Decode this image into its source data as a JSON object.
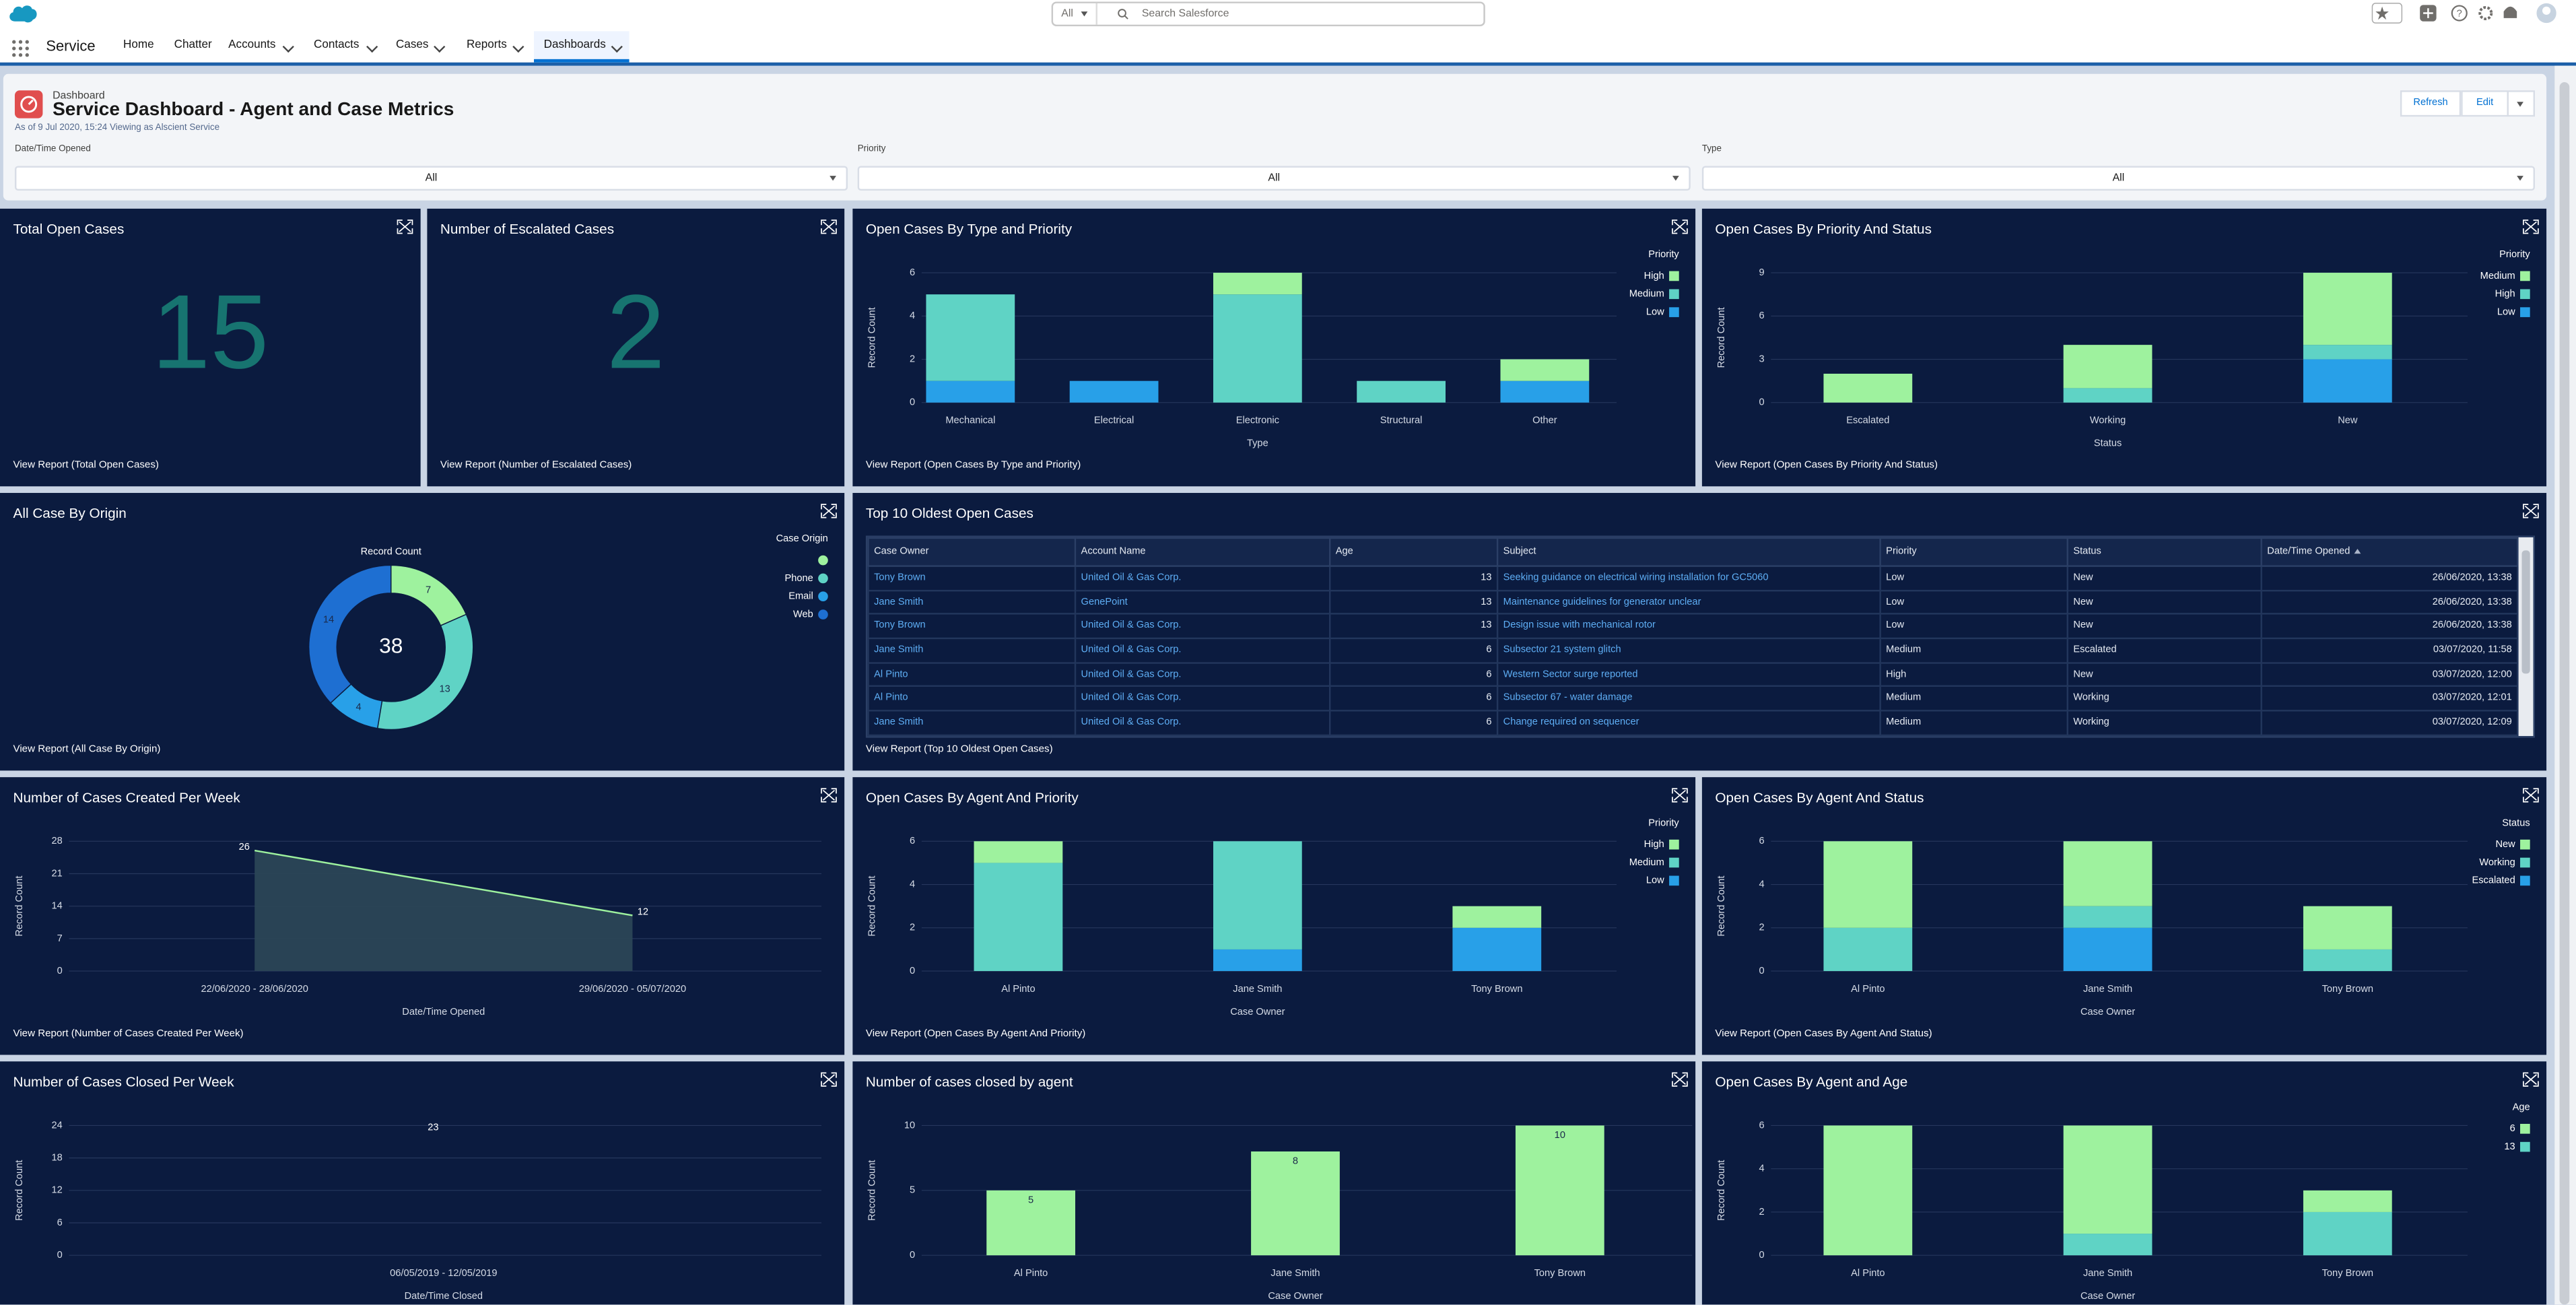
{
  "nav": {
    "app": "Service",
    "tabs": [
      "Home",
      "Chatter",
      "Accounts",
      "Contacts",
      "Cases",
      "Reports",
      "Dashboards"
    ],
    "search": {
      "scope": "All",
      "placeholder": "Search Salesforce"
    }
  },
  "header": {
    "label": "Dashboard",
    "title": "Service Dashboard - Agent and Case Metrics",
    "subtitle": "As of 9 Jul 2020, 15:24 Viewing as Alscient Service",
    "buttons": [
      "Refresh",
      "Edit"
    ]
  },
  "filters": [
    {
      "label": "Date/Time Opened",
      "value": "All"
    },
    {
      "label": "Priority",
      "value": "All"
    },
    {
      "label": "Type",
      "value": "All"
    }
  ],
  "widgets": [
    {
      "type": "metric",
      "title": "Total Open Cases",
      "value": 15,
      "link": "View Report (Total Open Cases)"
    },
    {
      "type": "metric",
      "title": "Number of Escalated Cases",
      "value": 2,
      "link": "View Report (Number of Escalated Cases)"
    },
    {
      "type": "bar",
      "title": "Open Cases By Type and Priority",
      "y_label": "Record Count",
      "x_label": "Type",
      "legend_title": "Priority",
      "categories": [
        "Mechanical",
        "Electrical",
        "Electronic",
        "Structural",
        "Other"
      ],
      "series": [
        {
          "name": "High",
          "color": "#9ef29e",
          "values": [
            0,
            0,
            1,
            0,
            1
          ]
        },
        {
          "name": "Medium",
          "color": "#5fd3c5",
          "values": [
            4,
            0,
            5,
            1,
            0
          ]
        },
        {
          "name": "Low",
          "color": "#28a0e8",
          "values": [
            1,
            1,
            0,
            0,
            1
          ]
        }
      ],
      "ylim": [
        0,
        6
      ],
      "yticks": [
        0,
        2,
        4,
        6
      ],
      "link": "View Report (Open Cases By Type and Priority)"
    },
    {
      "type": "bar",
      "title": "Open Cases By Priority And Status",
      "y_label": "Record Count",
      "x_label": "Status",
      "legend_title": "Priority",
      "categories": [
        "Escalated",
        "Working",
        "New"
      ],
      "series": [
        {
          "name": "Medium",
          "color": "#9ef29e",
          "values": [
            2,
            3,
            5
          ]
        },
        {
          "name": "High",
          "color": "#5fd3c5",
          "values": [
            0,
            1,
            1
          ]
        },
        {
          "name": "Low",
          "color": "#28a0e8",
          "values": [
            0,
            0,
            3
          ]
        }
      ],
      "ylim": [
        0,
        9
      ],
      "yticks": [
        0,
        3,
        6,
        9
      ],
      "link": "View Report (Open Cases By Priority And Status)"
    },
    {
      "type": "donut",
      "title": "All Case By Origin",
      "label": "Record Count",
      "legend_title": "Case Origin",
      "total": 38,
      "categories": [
        null,
        "Phone",
        "Email",
        "Web"
      ],
      "values": [
        7,
        13,
        4,
        14
      ],
      "colors": [
        "#9ef29e",
        "#5fd3c5",
        "#28a0e8",
        "#1e6fd2"
      ],
      "link": "View Report (All Case By Origin)"
    },
    {
      "type": "table",
      "title": "Top 10 Oldest Open Cases",
      "columns": [
        "Case Owner",
        "Account Name",
        "Age",
        "Subject",
        "Priority",
        "Status",
        "Date/Time Opened"
      ],
      "rows": [
        [
          "Tony Brown",
          "United Oil & Gas Corp.",
          13,
          "Seeking guidance on electrical wiring installation for GC5060",
          "Low",
          "New",
          "26/06/2020, 13:38"
        ],
        [
          "Jane Smith",
          "GenePoint",
          13,
          "Maintenance guidelines for generator unclear",
          "Low",
          "New",
          "26/06/2020, 13:38"
        ],
        [
          "Tony Brown",
          "United Oil & Gas Corp.",
          13,
          "Design issue with mechanical rotor",
          "Low",
          "New",
          "26/06/2020, 13:38"
        ],
        [
          "Jane Smith",
          "United Oil & Gas Corp.",
          6,
          "Subsector 21 system glitch",
          "Medium",
          "Escalated",
          "03/07/2020, 11:58"
        ],
        [
          "Al Pinto",
          "United Oil & Gas Corp.",
          6,
          "Western Sector surge reported",
          "High",
          "New",
          "03/07/2020, 12:00"
        ],
        [
          "Al Pinto",
          "United Oil & Gas Corp.",
          6,
          "Subsector 67 - water damage",
          "Medium",
          "Working",
          "03/07/2020, 12:01"
        ],
        [
          "Jane Smith",
          "United Oil & Gas Corp.",
          6,
          "Change required on sequencer",
          "Medium",
          "Working",
          "03/07/2020, 12:09"
        ]
      ],
      "link": "View Report (Top 10 Oldest Open Cases)"
    },
    {
      "type": "area",
      "title": "Number of Cases Created Per Week",
      "y_label": "Record Count",
      "x_label": "Date/Time Opened",
      "categories": [
        "22/06/2020 - 28/06/2020",
        "29/06/2020 - 05/07/2020"
      ],
      "values": [
        26,
        12
      ],
      "color": "#9ef29e",
      "ylim": [
        0,
        28
      ],
      "yticks": [
        0,
        7,
        14,
        21,
        28
      ],
      "link": "View Report (Number of Cases Created Per Week)"
    },
    {
      "type": "bar",
      "title": "Open Cases By Agent And Priority",
      "y_label": "Record Count",
      "x_label": "Case Owner",
      "legend_title": "Priority",
      "categories": [
        "Al Pinto",
        "Jane Smith",
        "Tony Brown"
      ],
      "series": [
        {
          "name": "High",
          "color": "#9ef29e",
          "values": [
            1,
            0,
            1
          ]
        },
        {
          "name": "Medium",
          "color": "#5fd3c5",
          "values": [
            5,
            5,
            0
          ]
        },
        {
          "name": "Low",
          "color": "#28a0e8",
          "values": [
            0,
            1,
            2
          ]
        }
      ],
      "ylim": [
        0,
        6
      ],
      "yticks": [
        0,
        2,
        4,
        6
      ],
      "link": "View Report (Open Cases By Agent And Priority)"
    },
    {
      "type": "bar",
      "title": "Open Cases By Agent And Status",
      "y_label": "Record Count",
      "x_label": "Case Owner",
      "legend_title": "Status",
      "categories": [
        "Al Pinto",
        "Jane Smith",
        "Tony Brown"
      ],
      "series": [
        {
          "name": "New",
          "color": "#9ef29e",
          "values": [
            4,
            3,
            2
          ]
        },
        {
          "name": "Working",
          "color": "#5fd3c5",
          "values": [
            2,
            1,
            1
          ]
        },
        {
          "name": "Escalated",
          "color": "#28a0e8",
          "values": [
            0,
            2,
            0
          ]
        }
      ],
      "ylim": [
        0,
        6
      ],
      "yticks": [
        0,
        2,
        4,
        6
      ],
      "link": "View Report (Open Cases By Agent And Status)"
    },
    {
      "type": "line",
      "title": "Number of Cases Closed Per Week",
      "y_label": "Record Count",
      "x_label": "Date/Time Closed",
      "categories": [
        "06/05/2019 - 12/05/2019"
      ],
      "values": [
        23
      ],
      "color": "#9ef29e",
      "ylim": [
        0,
        24
      ],
      "yticks": [
        0,
        6,
        12,
        18,
        24
      ]
    },
    {
      "type": "bar",
      "title": "Number of cases closed by agent",
      "y_label": "Record Count",
      "x_label": "Case Owner",
      "categories": [
        "Al Pinto",
        "Jane Smith",
        "Tony Brown"
      ],
      "values": [
        5,
        8,
        10
      ],
      "color": "#9ef29e",
      "ylim": [
        0,
        10
      ],
      "yticks": [
        0,
        5,
        10
      ]
    },
    {
      "type": "bar",
      "title": "Open Cases By Agent and Age",
      "y_label": "Record Count",
      "x_label": "Case Owner",
      "legend_title": "Age",
      "categories": [
        "Al Pinto",
        "Jane Smith",
        "Tony Brown"
      ],
      "series": [
        {
          "name": "6",
          "color": "#9ef29e",
          "values": [
            6,
            5,
            1
          ]
        },
        {
          "name": "13",
          "color": "#5fd3c5",
          "values": [
            0,
            1,
            2
          ]
        }
      ],
      "ylim": [
        0,
        6
      ],
      "yticks": [
        0,
        2,
        4,
        6
      ]
    }
  ]
}
